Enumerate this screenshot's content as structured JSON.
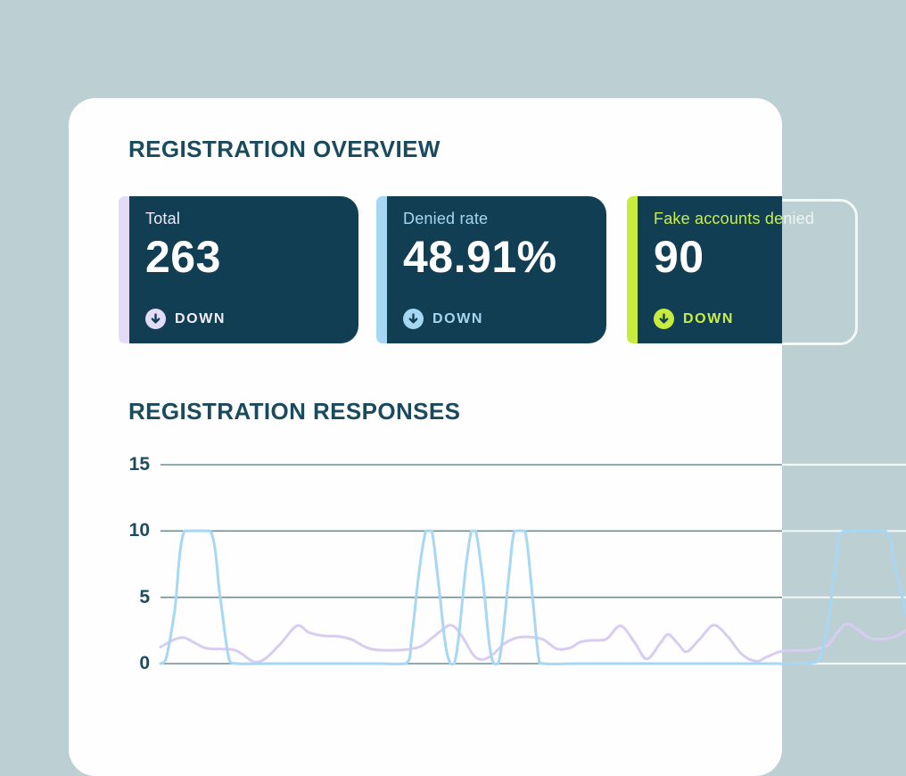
{
  "colors": {
    "page_bg": "#bccfd2",
    "panel_bg": "#fefefe",
    "card_bg": "#113e52",
    "heading": "#1a4a5e",
    "tick_label": "#1d4b5f",
    "value_color": "#ffffff",
    "grid_inner": "#6b9094",
    "grid_outer": "#f2f7f7",
    "ghost_border": "#f2f7f7"
  },
  "overview": {
    "title": "REGISTRATION OVERVIEW",
    "cards": [
      {
        "label_parts": [
          "Total"
        ],
        "value": "263",
        "status": "DOWN",
        "accent": "#e4dcf7",
        "label_color": "#efeafb",
        "status_color": "#f2eefc"
      },
      {
        "label_parts": [
          "Denied rate"
        ],
        "value": "48.91%",
        "status": "DOWN",
        "accent": "#a6d7f2",
        "label_color": "#a6d7f2",
        "status_color": "#a6d7f2"
      },
      {
        "label_parts": [
          "Fake accounts de",
          "nied"
        ],
        "value": "90",
        "status": "DOWN",
        "accent": "#c7ec3e",
        "label_color": "#c9ee49",
        "overflow_color": "#eef4f4",
        "status_color": "#c9ee49"
      }
    ]
  },
  "chart_data": {
    "type": "line",
    "title": "REGISTRATION RESPONSES",
    "xlabel": "",
    "ylabel": "",
    "ylim": [
      0,
      15
    ],
    "y_ticks": [
      15,
      10,
      5,
      0
    ],
    "y_tick_labels": [
      "15",
      "10",
      "5",
      "0"
    ],
    "grid": true,
    "legend": false,
    "x_unit": "percent-of-width",
    "series": [
      {
        "name": "responses-lavender",
        "color": "#d8cdf1",
        "points": [
          [
            0,
            1.25
          ],
          [
            1.8,
            1.8
          ],
          [
            3.2,
            1.95
          ],
          [
            4.8,
            1.5
          ],
          [
            6.2,
            1.15
          ],
          [
            8.1,
            1.1
          ],
          [
            9.8,
            1.05
          ],
          [
            11,
            0.7
          ],
          [
            12.6,
            0.12
          ],
          [
            14.1,
            0.4
          ],
          [
            16.1,
            1.5
          ],
          [
            18.3,
            2.85
          ],
          [
            19.9,
            2.35
          ],
          [
            21.8,
            2.1
          ],
          [
            23.9,
            2.05
          ],
          [
            25.7,
            1.8
          ],
          [
            27.3,
            1.3
          ],
          [
            28.7,
            1.05
          ],
          [
            30.9,
            1
          ],
          [
            32.9,
            1.05
          ],
          [
            34.9,
            1.3
          ],
          [
            36.8,
            2.1
          ],
          [
            38.9,
            2.9
          ],
          [
            40.4,
            2.1
          ],
          [
            41.9,
            0.7
          ],
          [
            43.1,
            0.3
          ],
          [
            44.5,
            0.65
          ],
          [
            46.1,
            1.5
          ],
          [
            47.8,
            1.95
          ],
          [
            49.6,
            2
          ],
          [
            51.4,
            1.8
          ],
          [
            53.2,
            1.1
          ],
          [
            55,
            1.2
          ],
          [
            56.2,
            1.6
          ],
          [
            57.7,
            1.75
          ],
          [
            59.8,
            1.85
          ],
          [
            61.7,
            2.85
          ],
          [
            63.6,
            1.6
          ],
          [
            65.2,
            0.35
          ],
          [
            67,
            1.5
          ],
          [
            68.1,
            2.2
          ],
          [
            69.4,
            1.5
          ],
          [
            70.6,
            0.9
          ],
          [
            72.4,
            1.9
          ],
          [
            74.2,
            2.9
          ],
          [
            76,
            2.1
          ],
          [
            78,
            0.7
          ],
          [
            79.9,
            0.18
          ],
          [
            81.3,
            0.5
          ],
          [
            83.1,
            0.9
          ],
          [
            85.2,
            1
          ],
          [
            86.7,
            1
          ],
          [
            87.9,
            1.1
          ],
          [
            89.5,
            1.4
          ],
          [
            90.9,
            2.4
          ],
          [
            92.1,
            3
          ],
          [
            93.7,
            2.5
          ],
          [
            95.3,
            1.9
          ],
          [
            97.7,
            1.9
          ],
          [
            99,
            2.15
          ],
          [
            100,
            2.5
          ]
        ]
      },
      {
        "name": "responses-blue",
        "color": "#a6d7f4",
        "points": [
          [
            0,
            0
          ],
          [
            0.7,
            0.3
          ],
          [
            1.9,
            4
          ],
          [
            3.2,
            10
          ],
          [
            6.7,
            10
          ],
          [
            8,
            5
          ],
          [
            9.2,
            0.3
          ],
          [
            10.3,
            0
          ],
          [
            14.4,
            0
          ],
          [
            21.5,
            0
          ],
          [
            28.7,
            0
          ],
          [
            32.9,
            0
          ],
          [
            33.7,
            2
          ],
          [
            34.7,
            7
          ],
          [
            35.6,
            10
          ],
          [
            36.4,
            10
          ],
          [
            37.3,
            6
          ],
          [
            38.2,
            1.5
          ],
          [
            38.9,
            0
          ],
          [
            39.4,
            0
          ],
          [
            40,
            2
          ],
          [
            40.9,
            7
          ],
          [
            41.7,
            10
          ],
          [
            42.3,
            10
          ],
          [
            43.3,
            6
          ],
          [
            44.1,
            1.5
          ],
          [
            44.7,
            0
          ],
          [
            45.3,
            0
          ],
          [
            45.9,
            2
          ],
          [
            46.8,
            7
          ],
          [
            47.5,
            10
          ],
          [
            48.9,
            10
          ],
          [
            49.9,
            5
          ],
          [
            50.7,
            0.5
          ],
          [
            51.4,
            0
          ],
          [
            56.2,
            0
          ],
          [
            64.6,
            0
          ],
          [
            74.2,
            0
          ],
          [
            82.5,
            0
          ],
          [
            86.7,
            0
          ],
          [
            88.5,
            0.5
          ],
          [
            89.5,
            3
          ],
          [
            90.7,
            8
          ],
          [
            91.7,
            10
          ],
          [
            97.2,
            10
          ],
          [
            98.4,
            7.5
          ],
          [
            99.3,
            5.5
          ],
          [
            100,
            3.6
          ]
        ]
      }
    ]
  }
}
